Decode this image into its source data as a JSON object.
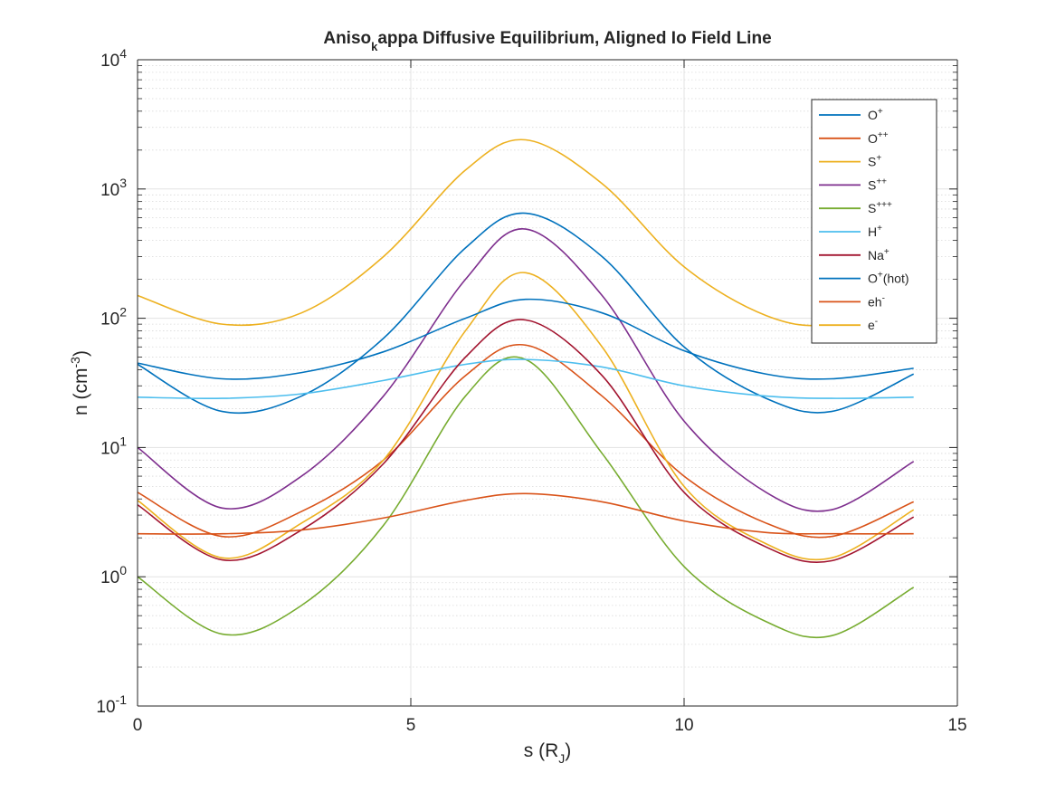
{
  "chart_data": {
    "type": "line",
    "title_main": "Aniso",
    "title_sub": "k",
    "title_rest": "appa Diffusive Equilibrium, Aligned Io Field Line",
    "xlabel_main": "s (R",
    "xlabel_sub": "J",
    "xlabel_end": ")",
    "ylabel_main": "n (cm",
    "ylabel_sup": "-3",
    "ylabel_end": ")",
    "xlim": [
      0,
      15
    ],
    "ylim": [
      0.1,
      10000
    ],
    "yscale": "log",
    "grid": true,
    "minor_grid": true,
    "legend_position": "top-right",
    "xticks": [
      {
        "value": 0,
        "label": "0"
      },
      {
        "value": 5,
        "label": "5"
      },
      {
        "value": 10,
        "label": "10"
      },
      {
        "value": 15,
        "label": "15"
      }
    ],
    "yticks": [
      {
        "value": 0.1,
        "base": "10",
        "exp": "-1"
      },
      {
        "value": 1,
        "base": "10",
        "exp": "0"
      },
      {
        "value": 10,
        "base": "10",
        "exp": "1"
      },
      {
        "value": 100,
        "base": "10",
        "exp": "2"
      },
      {
        "value": 1000,
        "base": "10",
        "exp": "3"
      },
      {
        "value": 10000,
        "base": "10",
        "exp": "4"
      }
    ],
    "x": [
      0,
      1.55,
      3,
      4.5,
      6,
      7.1,
      8.5,
      10,
      11.5,
      12.7,
      14.2
    ],
    "series": [
      {
        "name_main": "O",
        "name_sup": "+",
        "name_end": "",
        "color": "#0072BD",
        "values": [
          44,
          19,
          25,
          70,
          350,
          650,
          300,
          60,
          24,
          19,
          37
        ]
      },
      {
        "name_main": "O",
        "name_sup": "++",
        "name_end": "",
        "color": "#D95319",
        "values": [
          4.5,
          2.05,
          3.2,
          8,
          36,
          62,
          25,
          6,
          2.6,
          2.05,
          3.8
        ]
      },
      {
        "name_main": "S",
        "name_sup": "+",
        "name_end": "",
        "color": "#EDB120",
        "values": [
          3.9,
          1.4,
          2.6,
          8,
          80,
          225,
          60,
          5,
          1.8,
          1.4,
          3.3
        ]
      },
      {
        "name_main": "S",
        "name_sup": "++",
        "name_end": "",
        "color": "#7E2F8E",
        "values": [
          10,
          3.4,
          6,
          25,
          200,
          490,
          150,
          16,
          4.5,
          3.3,
          7.8
        ]
      },
      {
        "name_main": "S",
        "name_sup": "+++",
        "name_end": "",
        "color": "#77AC30",
        "values": [
          1.0,
          0.36,
          0.6,
          2.5,
          25,
          48,
          9,
          1.2,
          0.45,
          0.35,
          0.83
        ]
      },
      {
        "name_main": "H",
        "name_sup": "+",
        "name_end": "",
        "color": "#4DBEEE",
        "values": [
          24.5,
          24,
          26,
          33,
          44,
          48,
          42,
          30,
          25,
          24,
          24.5
        ]
      },
      {
        "name_main": "Na",
        "name_sup": "+",
        "name_end": "",
        "color": "#A2142F",
        "values": [
          3.6,
          1.35,
          2.3,
          7.5,
          50,
          97,
          36,
          4.5,
          1.7,
          1.33,
          2.9
        ]
      },
      {
        "name_main": "O",
        "name_sup": "+",
        "name_end": "(hot)",
        "color": "#0072BD",
        "values": [
          45,
          34,
          38,
          55,
          100,
          140,
          110,
          56,
          37,
          34,
          41
        ]
      },
      {
        "name_main": "eh",
        "name_sup": "-",
        "name_end": "",
        "color": "#D95319",
        "values": [
          2.15,
          2.15,
          2.3,
          2.85,
          3.9,
          4.4,
          3.8,
          2.7,
          2.2,
          2.15,
          2.15
        ]
      },
      {
        "name_main": "e",
        "name_sup": "-",
        "name_end": "",
        "color": "#EDB120",
        "values": [
          150,
          90,
          110,
          300,
          1400,
          2400,
          1100,
          250,
          105,
          90,
          150
        ]
      }
    ]
  }
}
